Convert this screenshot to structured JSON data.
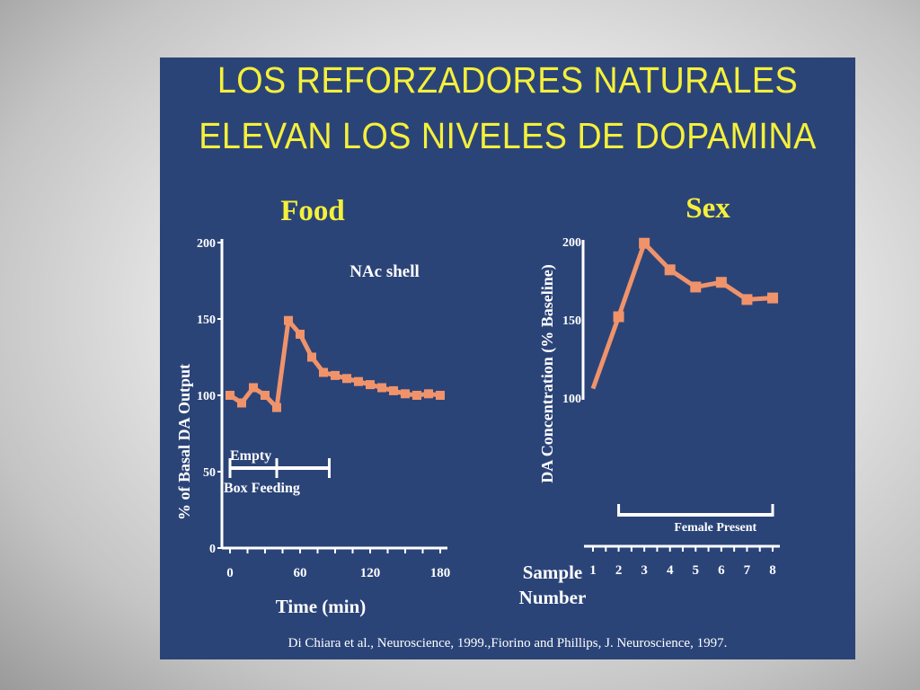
{
  "title": {
    "line1": "LOS REFORZADORES NATURALES",
    "line2": "ELEVAN LOS NIVELES DE DOPAMINA"
  },
  "credit": "Di Chiara et al., Neuroscience, 1999.,Fiorino and Phillips, J. Neuroscience, 1997.",
  "colors": {
    "slide_background": "#2b4478",
    "title": "#f5f03a",
    "series": "#f0936a",
    "axes": "#ffffff"
  },
  "chart_data": [
    {
      "type": "line",
      "title": "Food",
      "annotation": "NAc shell",
      "xlabel": "Time (min)",
      "ylabel": "% of Basal DA Output",
      "xlim": [
        0,
        180
      ],
      "ylim": [
        0,
        200
      ],
      "x_ticks": [
        "0",
        "60",
        "120",
        "180"
      ],
      "y_ticks": [
        "200",
        "150",
        "100",
        "50",
        "0"
      ],
      "series": [
        {
          "x": [
            0,
            10,
            20,
            30,
            40,
            50,
            60,
            70,
            80,
            90,
            100,
            110,
            120,
            130,
            140,
            150,
            160,
            170,
            180
          ],
          "y": [
            100,
            95,
            105,
            100,
            92,
            149,
            140,
            125,
            115,
            113,
            111,
            109,
            107,
            105,
            103,
            101,
            100,
            101,
            100
          ]
        }
      ],
      "bars": [
        {
          "label": "Empty",
          "x": [
            0,
            40
          ]
        },
        {
          "label": "Box Feeding",
          "x": [
            40,
            85
          ]
        }
      ],
      "grid": false
    },
    {
      "type": "line",
      "title": "Sex",
      "xlabel": "Sample Number",
      "ylabel": "DA Concentration (% Baseline)",
      "xlim": [
        1,
        8
      ],
      "ylim": [
        100,
        200
      ],
      "x_ticks": [
        "1",
        "2",
        "3",
        "4",
        "5",
        "6",
        "7",
        "8"
      ],
      "y_ticks": [
        "200",
        "150",
        "100"
      ],
      "series": [
        {
          "x": [
            1,
            2,
            3,
            4,
            5,
            6,
            7,
            8
          ],
          "y": [
            106,
            152,
            199,
            182,
            171,
            174,
            163,
            164
          ]
        }
      ],
      "bars": [
        {
          "label": "Female Present",
          "x": [
            2,
            8
          ]
        }
      ],
      "grid": false
    }
  ]
}
